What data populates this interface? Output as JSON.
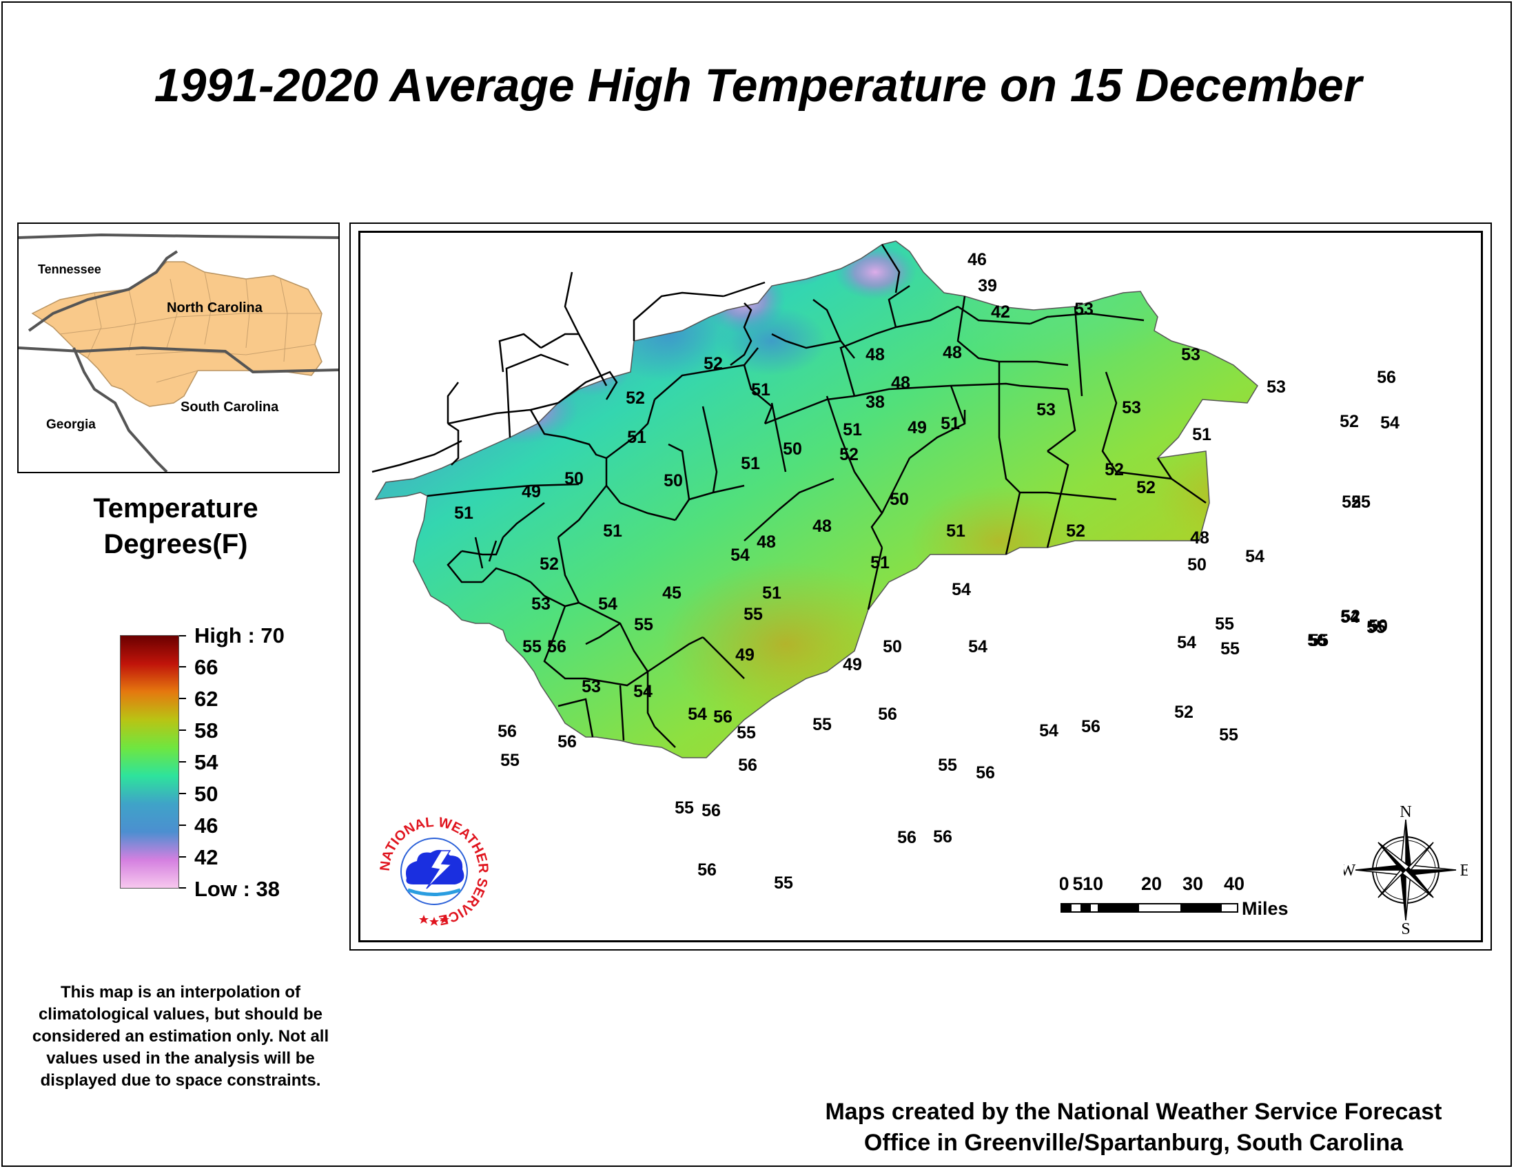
{
  "title": "1991-2020 Average High Temperature on 15 December",
  "inset": {
    "labels": {
      "tennessee": "Tennessee",
      "north_carolina": "North Carolina",
      "georgia": "Georgia",
      "south_carolina": "South Carolina"
    },
    "region_color": "#f9c98a"
  },
  "legend": {
    "title_line1": "Temperature",
    "title_line2": "Degrees(F)",
    "high_label": "High : 70",
    "low_label": "Low : 38",
    "ticks": [
      "66",
      "62",
      "58",
      "54",
      "50",
      "46",
      "42"
    ],
    "colors": [
      "#6b0000",
      "#c0140a",
      "#e5780f",
      "#b9c414",
      "#6fe640",
      "#2ee39c",
      "#3fa3c8",
      "#4c8fd0",
      "#d480e0",
      "#f7c8ee"
    ]
  },
  "note": "This map is an interpolation of climatological values, but should be considered an estimation only. Not all values used in the analysis will be displayed due to space constraints.",
  "credit_line1": "Maps created by the National Weather Service Forecast",
  "credit_line2": "Office in Greenville/Spartanburg, South Carolina",
  "scale_bar": {
    "ticks": [
      "0",
      "5",
      "10",
      "20",
      "30",
      "40"
    ],
    "unit": "Miles"
  },
  "compass": {
    "n": "N",
    "s": "S",
    "e": "E",
    "w": "W"
  },
  "logo": {
    "text": "NATIONAL WEATHER SERVICE"
  },
  "station_values": [
    "46",
    "39",
    "42",
    "48",
    "48",
    "48",
    "38",
    "52",
    "51",
    "52",
    "51",
    "51",
    "52",
    "49",
    "51",
    "50",
    "51",
    "50",
    "50",
    "49",
    "51",
    "51",
    "50",
    "51",
    "52",
    "52",
    "52",
    "53",
    "53",
    "53",
    "53",
    "51",
    "53",
    "52",
    "52",
    "54",
    "56",
    "55",
    "54",
    "52",
    "50",
    "48",
    "50",
    "51",
    "54",
    "48",
    "48",
    "51",
    "45",
    "52",
    "53",
    "54",
    "55",
    "55",
    "56",
    "55",
    "54",
    "49",
    "49",
    "50",
    "54",
    "53",
    "54",
    "54",
    "56",
    "55",
    "55",
    "56",
    "55",
    "56",
    "54",
    "56",
    "56",
    "54",
    "55",
    "55",
    "52",
    "55",
    "54",
    "56",
    "55",
    "56",
    "56",
    "55",
    "56",
    "56",
    "55",
    "56",
    "56",
    "55",
    "55"
  ]
}
